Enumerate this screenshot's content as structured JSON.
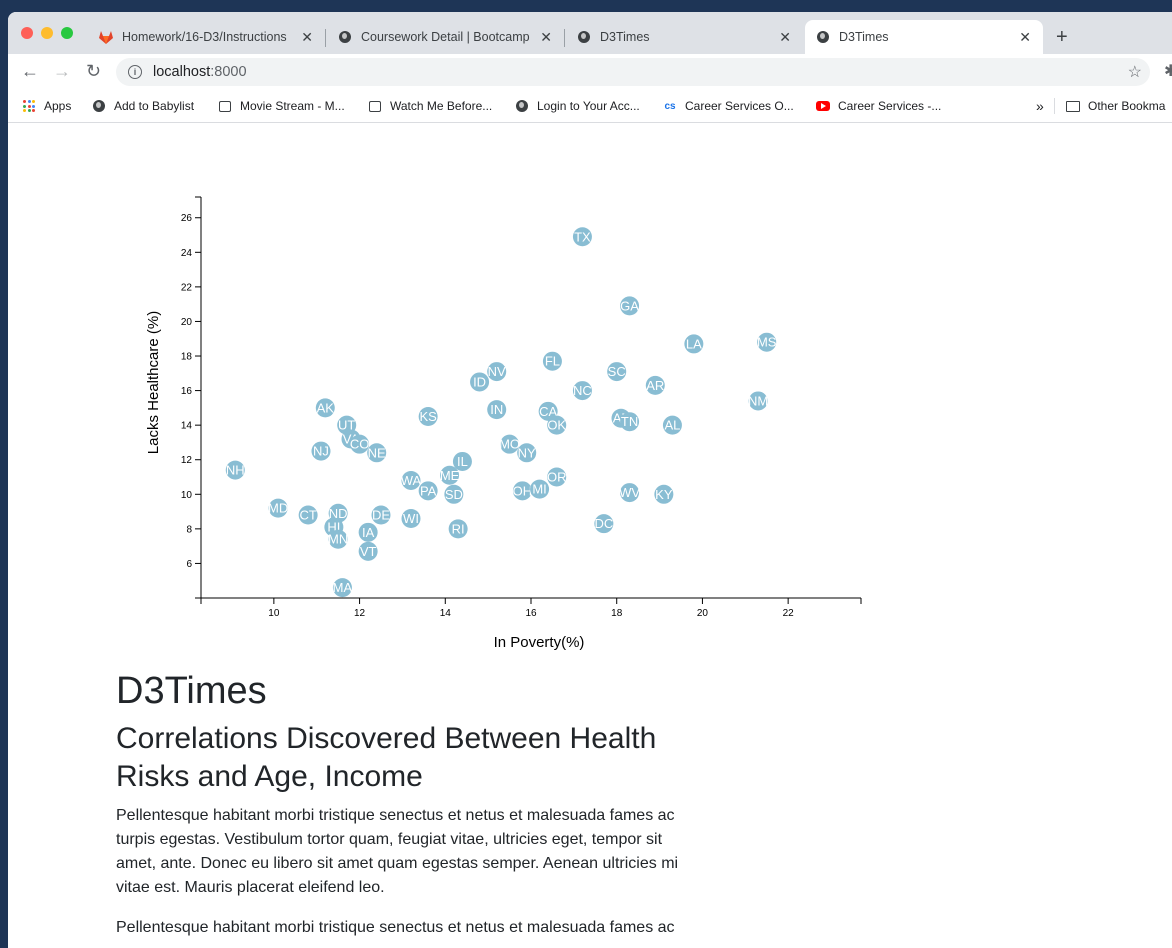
{
  "browser": {
    "tabs": [
      {
        "title": "Homework/16-D3/Instructions",
        "favicon": "gitlab-icon",
        "active": false
      },
      {
        "title": "Coursework Detail | Bootcamp",
        "favicon": "globe-icon",
        "active": false
      },
      {
        "title": "D3Times",
        "favicon": "globe-icon",
        "active": false
      },
      {
        "title": "D3Times",
        "favicon": "globe-icon",
        "active": true
      }
    ],
    "url_host": "localhost",
    "url_port": ":8000",
    "bookmarks": [
      {
        "label": "Apps",
        "icon": "apps-grid-icon"
      },
      {
        "label": "Add to Babylist",
        "icon": "globe-icon"
      },
      {
        "label": "Movie Stream - M...",
        "icon": "film-icon"
      },
      {
        "label": "Watch Me Before...",
        "icon": "film-icon"
      },
      {
        "label": "Login to Your Acc...",
        "icon": "globe-icon"
      },
      {
        "label": "Career Services O...",
        "icon": "cs-icon"
      },
      {
        "label": "Career Services -...",
        "icon": "youtube-icon"
      }
    ],
    "bookmarks_overflow": "»",
    "other_bookmarks": "Other Bookma"
  },
  "article": {
    "title": "D3Times",
    "subtitle": "Correlations Discovered Between Health Risks and Age, Income",
    "paragraphs": [
      "Pellentesque habitant morbi tristique senectus et netus et malesuada fames ac turpis egestas. Vestibulum tortor quam, feugiat vitae, ultricies eget, tempor sit amet, ante. Donec eu libero sit amet quam egestas semper. Aenean ultricies mi vitae est. Mauris placerat eleifend leo.",
      "Pellentesque habitant morbi tristique senectus et netus et malesuada fames ac"
    ]
  },
  "chart_data": {
    "type": "scatter",
    "xlabel": "In Poverty(%)",
    "ylabel": "Lacks Healthcare (%)",
    "xlim": [
      8.3,
      23.7
    ],
    "ylim": [
      4.0,
      27.2
    ],
    "xticks": [
      10,
      12,
      14,
      16,
      18,
      20,
      22
    ],
    "yticks": [
      6,
      8,
      10,
      12,
      14,
      16,
      18,
      20,
      22,
      24,
      26
    ],
    "point_color": "#89bdd3",
    "label_color": "#ffffff",
    "points": [
      {
        "label": "TX",
        "x": 17.2,
        "y": 24.9
      },
      {
        "label": "GA",
        "x": 18.3,
        "y": 20.9
      },
      {
        "label": "LA",
        "x": 19.8,
        "y": 18.7
      },
      {
        "label": "MS",
        "x": 21.5,
        "y": 18.8
      },
      {
        "label": "FL",
        "x": 16.5,
        "y": 17.7
      },
      {
        "label": "NV",
        "x": 15.2,
        "y": 17.1
      },
      {
        "label": "SC",
        "x": 18.0,
        "y": 17.1
      },
      {
        "label": "ID",
        "x": 14.8,
        "y": 16.5
      },
      {
        "label": "NC",
        "x": 17.2,
        "y": 16.0
      },
      {
        "label": "AR",
        "x": 18.9,
        "y": 16.3
      },
      {
        "label": "NM",
        "x": 21.3,
        "y": 15.4
      },
      {
        "label": "AK",
        "x": 11.2,
        "y": 15.0
      },
      {
        "label": "IN",
        "x": 15.2,
        "y": 14.9
      },
      {
        "label": "CA",
        "x": 16.4,
        "y": 14.8
      },
      {
        "label": "KS",
        "x": 13.6,
        "y": 14.5
      },
      {
        "label": "AZ",
        "x": 18.1,
        "y": 14.4
      },
      {
        "label": "TN",
        "x": 18.3,
        "y": 14.2
      },
      {
        "label": "OK",
        "x": 16.6,
        "y": 14.0
      },
      {
        "label": "AL",
        "x": 19.3,
        "y": 14.0
      },
      {
        "label": "UT",
        "x": 11.7,
        "y": 14.0
      },
      {
        "label": "VA",
        "x": 11.8,
        "y": 13.2
      },
      {
        "label": "CO",
        "x": 12.0,
        "y": 12.9
      },
      {
        "label": "NE",
        "x": 12.4,
        "y": 12.4
      },
      {
        "label": "NJ",
        "x": 11.1,
        "y": 12.5
      },
      {
        "label": "MO",
        "x": 15.5,
        "y": 12.9
      },
      {
        "label": "NY",
        "x": 15.9,
        "y": 12.4
      },
      {
        "label": "IL",
        "x": 14.4,
        "y": 11.9
      },
      {
        "label": "NH",
        "x": 9.1,
        "y": 11.4
      },
      {
        "label": "ME",
        "x": 14.1,
        "y": 11.1
      },
      {
        "label": "OR",
        "x": 16.6,
        "y": 11.0
      },
      {
        "label": "WA",
        "x": 13.2,
        "y": 10.8
      },
      {
        "label": "PA",
        "x": 13.6,
        "y": 10.2
      },
      {
        "label": "OH",
        "x": 15.8,
        "y": 10.2
      },
      {
        "label": "MI",
        "x": 16.2,
        "y": 10.3
      },
      {
        "label": "SD",
        "x": 14.2,
        "y": 10.0
      },
      {
        "label": "WV",
        "x": 18.3,
        "y": 10.1
      },
      {
        "label": "KY",
        "x": 19.1,
        "y": 10.0
      },
      {
        "label": "MD",
        "x": 10.1,
        "y": 9.2
      },
      {
        "label": "CT",
        "x": 10.8,
        "y": 8.8
      },
      {
        "label": "ND",
        "x": 11.5,
        "y": 8.9
      },
      {
        "label": "DE",
        "x": 12.5,
        "y": 8.8
      },
      {
        "label": "WI",
        "x": 13.2,
        "y": 8.6
      },
      {
        "label": "HI",
        "x": 11.4,
        "y": 8.1
      },
      {
        "label": "RI",
        "x": 14.3,
        "y": 8.0
      },
      {
        "label": "DC",
        "x": 17.7,
        "y": 8.3
      },
      {
        "label": "IA",
        "x": 12.2,
        "y": 7.8
      },
      {
        "label": "MN",
        "x": 11.5,
        "y": 7.4
      },
      {
        "label": "VT",
        "x": 12.2,
        "y": 6.7
      },
      {
        "label": "MA",
        "x": 11.6,
        "y": 4.6
      }
    ]
  }
}
